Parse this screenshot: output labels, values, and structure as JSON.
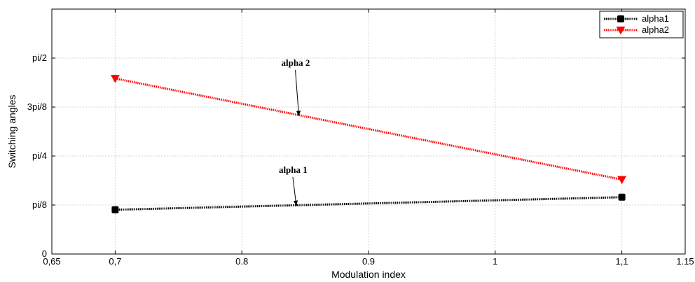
{
  "chart_data": {
    "type": "line",
    "xlabel": "Modulation index",
    "ylabel": "Switching angles",
    "xlim": [
      0.65,
      1.15
    ],
    "ylim": [
      0,
      0.625
    ],
    "x_ticks": [
      {
        "value": 0.65,
        "label": "0,65"
      },
      {
        "value": 0.7,
        "label": "0,7"
      },
      {
        "value": 0.8,
        "label": "0.8"
      },
      {
        "value": 0.9,
        "label": "0.9"
      },
      {
        "value": 1.0,
        "label": "1"
      },
      {
        "value": 1.1,
        "label": "1,1"
      },
      {
        "value": 1.15,
        "label": "1.15"
      }
    ],
    "y_ticks": [
      {
        "value": 0,
        "label": "0"
      },
      {
        "value": 0.125,
        "label": "pi/8"
      },
      {
        "value": 0.25,
        "label": "pi/4"
      },
      {
        "value": 0.375,
        "label": "3pi/8"
      },
      {
        "value": 0.5,
        "label": "pi/2"
      }
    ],
    "grid": true,
    "legend_position": "top-right",
    "series": [
      {
        "name": "alpha1",
        "color": "#000000",
        "marker": "square",
        "line_style": "dotted",
        "x": [
          0.7,
          1.1
        ],
        "y": [
          0.113,
          0.145
        ]
      },
      {
        "name": "alpha2",
        "color": "#ff0000",
        "marker": "triangle-down",
        "line_style": "dotted",
        "x": [
          0.7,
          1.1
        ],
        "y": [
          0.448,
          0.19
        ]
      }
    ],
    "annotations": [
      {
        "text": "alpha 2",
        "x": 0.845,
        "y": 0.352
      },
      {
        "text": "alpha 1",
        "x": 0.843,
        "y": 0.123
      }
    ]
  }
}
